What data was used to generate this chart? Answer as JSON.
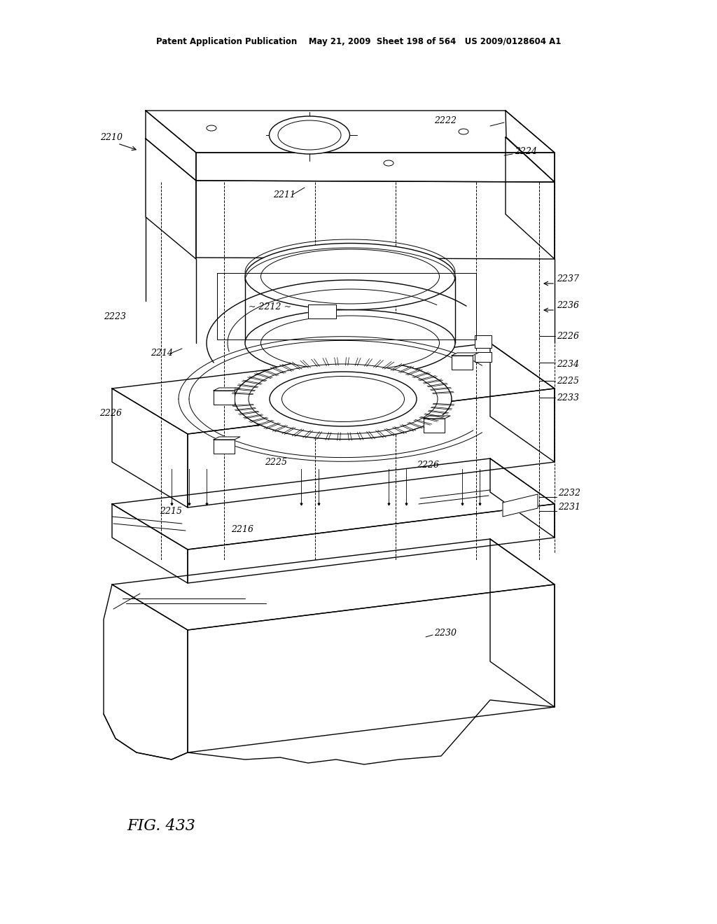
{
  "page_header": "Patent Application Publication    May 21, 2009  Sheet 198 of 564   US 2009/0128604 A1",
  "fig_label": "FIG. 433",
  "bg_color": "#ffffff",
  "lc": "#000000",
  "lw_thin": 0.7,
  "lw_med": 1.0,
  "lw_thick": 1.4
}
